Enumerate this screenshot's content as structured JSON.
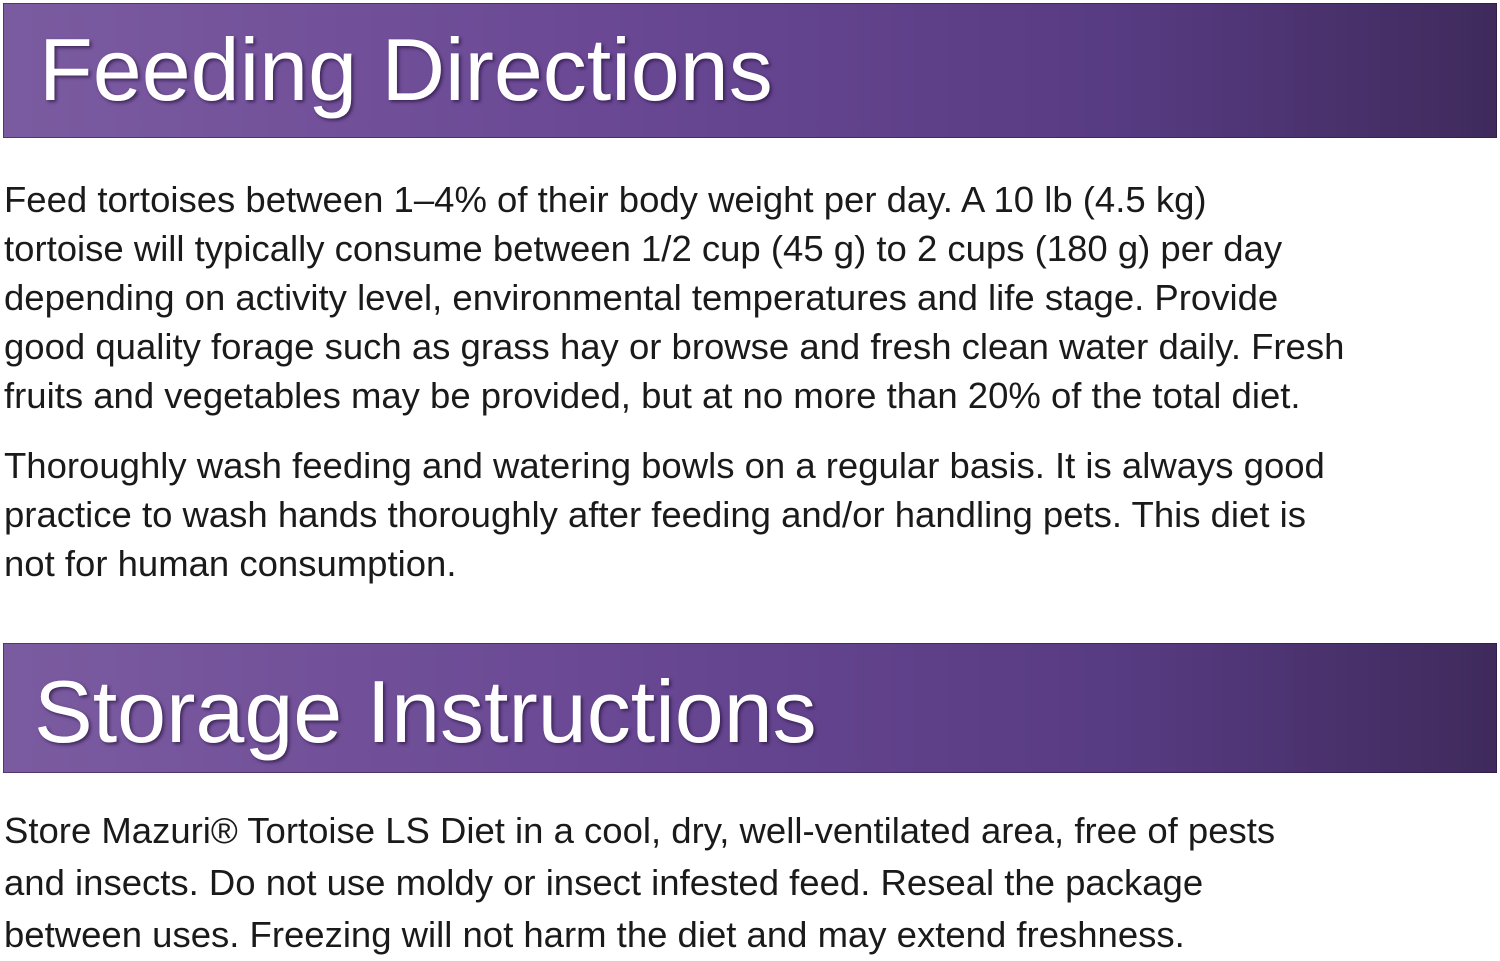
{
  "feeding": {
    "heading": "Feeding Directions",
    "paragraphs": [
      [
        "Feed tortoises between 1–4% of their body weight per day. A 10 lb (4.5 kg)",
        "tortoise will typically consume between 1/2 cup (45 g) to 2 cups (180 g) per day",
        "depending on activity level, environmental temperatures and life stage. Provide",
        "good quality forage such as grass hay or browse and fresh clean water daily. Fresh",
        "fruits and vegetables may be provided, but at no more than 20% of the total diet."
      ],
      [
        "Thoroughly wash feeding and watering bowls on a regular basis. It is always good",
        "practice to wash hands thoroughly after feeding and/or handling pets. This diet is",
        "not for human consumption."
      ]
    ]
  },
  "storage": {
    "heading": "Storage Instructions",
    "paragraphs": [
      [
        "Store Mazuri® Tortoise LS Diet in a cool, dry, well-ventilated area, free of pests",
        "and insects. Do not use moldy or insect infested feed. Reseal the package",
        "between uses. Freezing will not harm the diet and may extend freshness."
      ]
    ]
  },
  "colors": {
    "banner_left": "#7b5ba0",
    "banner_right": "#3f2a5c",
    "heading_text": "#ffffff"
  }
}
